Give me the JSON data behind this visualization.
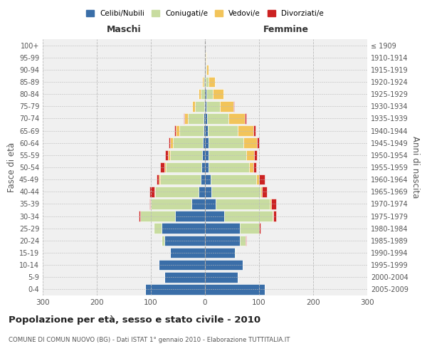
{
  "age_groups": [
    "0-4",
    "5-9",
    "10-14",
    "15-19",
    "20-24",
    "25-29",
    "30-34",
    "35-39",
    "40-44",
    "45-49",
    "50-54",
    "55-59",
    "60-64",
    "65-69",
    "70-74",
    "75-79",
    "80-84",
    "85-89",
    "90-94",
    "95-99",
    "100+"
  ],
  "birth_years": [
    "2005-2009",
    "2000-2004",
    "1995-1999",
    "1990-1994",
    "1985-1989",
    "1980-1984",
    "1975-1979",
    "1970-1974",
    "1965-1969",
    "1960-1964",
    "1955-1959",
    "1950-1954",
    "1945-1949",
    "1940-1944",
    "1935-1939",
    "1930-1934",
    "1925-1929",
    "1920-1924",
    "1915-1919",
    "1910-1914",
    "≤ 1909"
  ],
  "male": {
    "celibe": [
      110,
      75,
      85,
      65,
      75,
      80,
      55,
      25,
      12,
      8,
      7,
      5,
      4,
      3,
      2,
      1,
      0,
      0,
      0,
      0,
      0
    ],
    "coniugato": [
      0,
      0,
      0,
      0,
      5,
      15,
      65,
      75,
      80,
      75,
      65,
      60,
      55,
      45,
      30,
      18,
      8,
      3,
      0,
      0,
      0
    ],
    "vedovo": [
      0,
      0,
      0,
      0,
      0,
      0,
      0,
      1,
      1,
      2,
      3,
      4,
      5,
      6,
      6,
      5,
      4,
      2,
      0,
      0,
      0
    ],
    "divorziato": [
      0,
      0,
      0,
      0,
      0,
      0,
      2,
      2,
      10,
      5,
      8,
      5,
      3,
      2,
      1,
      0,
      0,
      0,
      0,
      0,
      0
    ]
  },
  "female": {
    "nubile": [
      110,
      60,
      70,
      55,
      65,
      65,
      35,
      20,
      12,
      10,
      7,
      6,
      6,
      5,
      4,
      3,
      2,
      1,
      1,
      0,
      0
    ],
    "coniugata": [
      0,
      0,
      0,
      2,
      10,
      35,
      90,
      100,
      90,
      85,
      75,
      70,
      65,
      55,
      40,
      25,
      12,
      5,
      2,
      1,
      0
    ],
    "vedova": [
      0,
      0,
      0,
      0,
      0,
      0,
      1,
      2,
      3,
      5,
      8,
      15,
      25,
      30,
      30,
      25,
      20,
      12,
      4,
      2,
      0
    ],
    "divorziata": [
      0,
      0,
      0,
      0,
      1,
      2,
      5,
      10,
      10,
      10,
      5,
      5,
      4,
      3,
      2,
      1,
      0,
      0,
      0,
      0,
      0
    ]
  },
  "colors": {
    "celibe": "#3A6EA8",
    "coniugato": "#C8DCA0",
    "vedovo": "#F2C45A",
    "divorziato": "#CC2222"
  },
  "xlim": 300,
  "title": "Popolazione per età, sesso e stato civile - 2010",
  "subtitle": "COMUNE DI COMUN NUOVO (BG) - Dati ISTAT 1° gennaio 2010 - Elaborazione TUTTITALIA.IT",
  "xlabel_left": "Maschi",
  "xlabel_right": "Femmine",
  "ylabel_left": "Fasce di età",
  "ylabel_right": "Anni di nascita",
  "legend_labels": [
    "Celibi/Nubili",
    "Coniugati/e",
    "Vedovi/e",
    "Divorziati/e"
  ],
  "background_color": "#f0f0f0"
}
